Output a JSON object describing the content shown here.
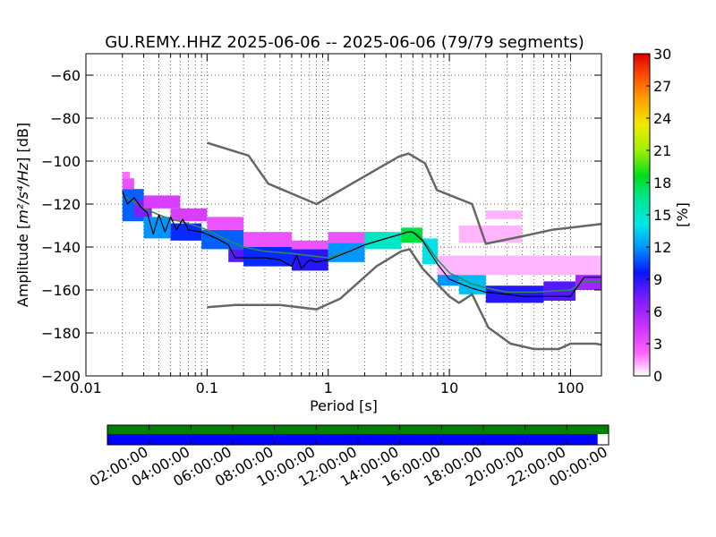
{
  "chart_data": {
    "type": "heatmap",
    "title": "GU.REMY..HHZ   2025-06-06 -- 2025-06-06  (79/79 segments)",
    "xlabel": "Period [s]",
    "ylabel_prefix": "Amplitude [",
    "ylabel_math": "m²/s⁴/Hz",
    "ylabel_suffix": "] [dB]",
    "xscale": "log",
    "xlim": [
      0.01,
      180
    ],
    "ylim": [
      -200,
      -50
    ],
    "xticks": [
      {
        "value": 0.01,
        "label": "0.01"
      },
      {
        "value": 0.1,
        "label": "0.1"
      },
      {
        "value": 1,
        "label": "1"
      },
      {
        "value": 10,
        "label": "10"
      },
      {
        "value": 100,
        "label": "100"
      }
    ],
    "yticks": [
      {
        "value": -60,
        "label": "−60"
      },
      {
        "value": -80,
        "label": "−80"
      },
      {
        "value": -100,
        "label": "−100"
      },
      {
        "value": -120,
        "label": "−120"
      },
      {
        "value": -140,
        "label": "−140"
      },
      {
        "value": -160,
        "label": "−160"
      },
      {
        "value": -180,
        "label": "−180"
      },
      {
        "value": -200,
        "label": "−200"
      }
    ],
    "grid": true,
    "colorbar": {
      "label": "[%]",
      "range": [
        0,
        30
      ],
      "ticks": [
        {
          "value": 0,
          "label": "0"
        },
        {
          "value": 3,
          "label": "3"
        },
        {
          "value": 6,
          "label": "6"
        },
        {
          "value": 9,
          "label": "9"
        },
        {
          "value": 12,
          "label": "12"
        },
        {
          "value": 15,
          "label": "15"
        },
        {
          "value": 18,
          "label": "18"
        },
        {
          "value": 21,
          "label": "21"
        },
        {
          "value": 24,
          "label": "24"
        },
        {
          "value": 27,
          "label": "27"
        },
        {
          "value": 30,
          "label": "30"
        }
      ]
    },
    "noise_model_high": [
      [
        0.1,
        -91.5
      ],
      [
        0.22,
        -97.4
      ],
      [
        0.32,
        -110.5
      ],
      [
        0.8,
        -120
      ],
      [
        3.8,
        -98
      ],
      [
        4.6,
        -96.5
      ],
      [
        6.3,
        -101
      ],
      [
        7.9,
        -113.5
      ],
      [
        15.4,
        -120
      ],
      [
        20,
        -138.5
      ],
      [
        40,
        -135
      ],
      [
        70,
        -132
      ],
      [
        180,
        -129.3
      ]
    ],
    "noise_model_low": [
      [
        0.1,
        -168
      ],
      [
        0.17,
        -167
      ],
      [
        0.4,
        -167
      ],
      [
        0.8,
        -169
      ],
      [
        1.26,
        -164
      ],
      [
        2.5,
        -149
      ],
      [
        4,
        -142
      ],
      [
        4.7,
        -141
      ],
      [
        6,
        -150
      ],
      [
        10,
        -163
      ],
      [
        12,
        -166
      ],
      [
        15.4,
        -162
      ],
      [
        21,
        -177.5
      ],
      [
        32,
        -185
      ],
      [
        50,
        -187.5
      ],
      [
        80,
        -187.5
      ],
      [
        100,
        -185
      ],
      [
        160,
        -185
      ],
      [
        180,
        -185.5
      ]
    ],
    "mode_line": [
      [
        0.02,
        -114
      ],
      [
        0.022,
        -120
      ],
      [
        0.025,
        -117
      ],
      [
        0.028,
        -121
      ],
      [
        0.032,
        -124
      ],
      [
        0.036,
        -134
      ],
      [
        0.04,
        -125
      ],
      [
        0.045,
        -133
      ],
      [
        0.05,
        -126
      ],
      [
        0.056,
        -132
      ],
      [
        0.063,
        -127
      ],
      [
        0.07,
        -132
      ],
      [
        0.09,
        -133
      ],
      [
        0.12,
        -136
      ],
      [
        0.15,
        -139
      ],
      [
        0.17,
        -145
      ],
      [
        0.2,
        -145
      ],
      [
        0.3,
        -145
      ],
      [
        0.4,
        -146
      ],
      [
        0.5,
        -149
      ],
      [
        0.55,
        -144
      ],
      [
        0.6,
        -150
      ],
      [
        0.7,
        -146
      ],
      [
        0.8,
        -147
      ],
      [
        1,
        -146
      ],
      [
        1.5,
        -142
      ],
      [
        2,
        -139
      ],
      [
        3,
        -136
      ],
      [
        4,
        -134
      ],
      [
        4.5,
        -133
      ],
      [
        5,
        -133
      ],
      [
        6,
        -137
      ],
      [
        7,
        -143
      ],
      [
        8,
        -148
      ],
      [
        10,
        -155
      ],
      [
        15,
        -159
      ],
      [
        20,
        -161
      ],
      [
        30,
        -162
      ],
      [
        40,
        -163
      ],
      [
        60,
        -163
      ],
      [
        100,
        -163
      ],
      [
        130,
        -154
      ],
      [
        180,
        -154
      ]
    ],
    "mean_line": [
      [
        0.02,
        -116
      ],
      [
        0.025,
        -119
      ],
      [
        0.03,
        -122
      ],
      [
        0.04,
        -125
      ],
      [
        0.05,
        -127
      ],
      [
        0.07,
        -129
      ],
      [
        0.1,
        -132
      ],
      [
        0.15,
        -137
      ],
      [
        0.2,
        -140
      ],
      [
        0.3,
        -142
      ],
      [
        0.5,
        -143
      ],
      [
        0.7,
        -144
      ],
      [
        1,
        -145
      ],
      [
        1.5,
        -142
      ],
      [
        2,
        -139
      ],
      [
        3,
        -136
      ],
      [
        4,
        -134
      ],
      [
        4.8,
        -133
      ],
      [
        5.5,
        -134
      ],
      [
        6.5,
        -139
      ],
      [
        8,
        -146
      ],
      [
        10,
        -152
      ],
      [
        15,
        -157
      ],
      [
        20,
        -159
      ],
      [
        30,
        -161
      ],
      [
        50,
        -161
      ],
      [
        100,
        -160
      ],
      [
        130,
        -156
      ],
      [
        180,
        -156
      ]
    ],
    "density_bands": [
      {
        "x": [
          0.02,
          0.023
        ],
        "y": [
          -108,
          -105
        ],
        "pct": 2
      },
      {
        "x": [
          0.02,
          0.025
        ],
        "y": [
          -113,
          -108
        ],
        "pct": 3
      },
      {
        "x": [
          0.02,
          0.03
        ],
        "y": [
          -128,
          -113
        ],
        "pct": 11
      },
      {
        "x": [
          0.025,
          0.035
        ],
        "y": [
          -126,
          -118
        ],
        "pct": 7
      },
      {
        "x": [
          0.03,
          0.05
        ],
        "y": [
          -136,
          -126
        ],
        "pct": 12
      },
      {
        "x": [
          0.03,
          0.06
        ],
        "y": [
          -122,
          -116
        ],
        "pct": 4
      },
      {
        "x": [
          0.05,
          0.09
        ],
        "y": [
          -137,
          -129
        ],
        "pct": 10
      },
      {
        "x": [
          0.05,
          0.1
        ],
        "y": [
          -128,
          -122
        ],
        "pct": 4
      },
      {
        "x": [
          0.09,
          0.2
        ],
        "y": [
          -141,
          -132
        ],
        "pct": 11
      },
      {
        "x": [
          0.1,
          0.2
        ],
        "y": [
          -132,
          -126
        ],
        "pct": 3
      },
      {
        "x": [
          0.15,
          0.3
        ],
        "y": [
          -147,
          -141
        ],
        "pct": 8
      },
      {
        "x": [
          0.2,
          0.5
        ],
        "y": [
          -149,
          -140
        ],
        "pct": 10
      },
      {
        "x": [
          0.2,
          0.5
        ],
        "y": [
          -140,
          -133
        ],
        "pct": 3
      },
      {
        "x": [
          0.5,
          1.0
        ],
        "y": [
          -151,
          -141
        ],
        "pct": 9
      },
      {
        "x": [
          0.5,
          1.0
        ],
        "y": [
          -141,
          -137
        ],
        "pct": 3
      },
      {
        "x": [
          1.0,
          2.0
        ],
        "y": [
          -147,
          -138
        ],
        "pct": 12
      },
      {
        "x": [
          1.0,
          3.0
        ],
        "y": [
          -138,
          -133
        ],
        "pct": 3
      },
      {
        "x": [
          2.0,
          4.0
        ],
        "y": [
          -141,
          -133
        ],
        "pct": 15
      },
      {
        "x": [
          4.0,
          6.0
        ],
        "y": [
          -138,
          -131
        ],
        "pct": 18
      },
      {
        "x": [
          6.0,
          8.0
        ],
        "y": [
          -148,
          -136
        ],
        "pct": 14
      },
      {
        "x": [
          8.0,
          12.0
        ],
        "y": [
          -158,
          -146
        ],
        "pct": 12
      },
      {
        "x": [
          12.0,
          20.0
        ],
        "y": [
          -162,
          -153
        ],
        "pct": 13
      },
      {
        "x": [
          20.0,
          60.0
        ],
        "y": [
          -166,
          -158
        ],
        "pct": 9
      },
      {
        "x": [
          60.0,
          110.0
        ],
        "y": [
          -165,
          -156
        ],
        "pct": 8
      },
      {
        "x": [
          110.0,
          180.0
        ],
        "y": [
          -160,
          -150
        ],
        "pct": 6
      },
      {
        "x": [
          110.0,
          180.0
        ],
        "y": [
          -150,
          -145
        ],
        "pct": 3
      },
      {
        "x": [
          8.0,
          180.0
        ],
        "y": [
          -153,
          -144
        ],
        "pct": 1
      },
      {
        "x": [
          12.0,
          40.0
        ],
        "y": [
          -138,
          -130
        ],
        "pct": 1
      },
      {
        "x": [
          20.0,
          40.0
        ],
        "y": [
          -127,
          -123
        ],
        "pct": 1
      }
    ]
  },
  "timeline": {
    "ticks": [
      "02:00:00",
      "04:00:00",
      "06:00:00",
      "08:00:00",
      "10:00:00",
      "12:00:00",
      "14:00:00",
      "16:00:00",
      "18:00:00",
      "20:00:00",
      "22:00:00",
      "00:00:00"
    ],
    "data_fraction": 0.978,
    "top_color": "#008000",
    "bottom_color": "#0000ff"
  },
  "colors": {
    "noise_model": "#666666",
    "mode_line": "#000000",
    "mean_line": "#2e8b57"
  }
}
